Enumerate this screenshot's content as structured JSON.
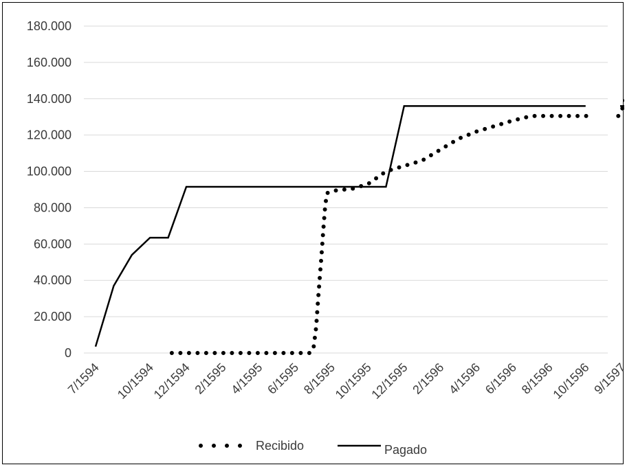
{
  "chart_data": {
    "type": "line",
    "title": "",
    "xlabel": "",
    "ylabel": "",
    "ylim": [
      0,
      180000
    ],
    "y_ticks": [
      "0",
      "20.000",
      "40.000",
      "60.000",
      "80.000",
      "100.000",
      "120.000",
      "140.000",
      "160.000",
      "180.000"
    ],
    "y_tick_values": [
      0,
      20000,
      40000,
      60000,
      80000,
      100000,
      120000,
      140000,
      160000,
      180000
    ],
    "categories": [
      "7/1594",
      "8/1594",
      "9/1594",
      "10/1594",
      "11/1594",
      "12/1594",
      "1/1595",
      "2/1595",
      "3/1595",
      "4/1595",
      "5/1595",
      "6/1595",
      "7/1595",
      "8/1595",
      "9/1595",
      "10/1595",
      "11/1595",
      "12/1595",
      "1/1596",
      "2/1596",
      "3/1596",
      "4/1596",
      "5/1596",
      "6/1596",
      "7/1596",
      "8/1596",
      "9/1596",
      "10/1596",
      "_gap",
      "9/1597"
    ],
    "x_tick_labels": [
      {
        "index": 0,
        "label": "7/1594"
      },
      {
        "index": 3,
        "label": "10/1594"
      },
      {
        "index": 5,
        "label": "12/1594"
      },
      {
        "index": 7,
        "label": "2/1595"
      },
      {
        "index": 9,
        "label": "4/1595"
      },
      {
        "index": 11,
        "label": "6/1595"
      },
      {
        "index": 13,
        "label": "8/1595"
      },
      {
        "index": 15,
        "label": "10/1595"
      },
      {
        "index": 17,
        "label": "12/1595"
      },
      {
        "index": 19,
        "label": "2/1596"
      },
      {
        "index": 21,
        "label": "4/1596"
      },
      {
        "index": 23,
        "label": "6/1596"
      },
      {
        "index": 25,
        "label": "8/1596"
      },
      {
        "index": 27,
        "label": "10/1596"
      },
      {
        "index": 29,
        "label": "9/1597"
      }
    ],
    "series": [
      {
        "name": "Recibido",
        "style": "dotted",
        "color": "#000000",
        "points": [
          [
            4.2,
            0
          ],
          [
            5,
            0
          ],
          [
            6,
            0
          ],
          [
            7,
            0
          ],
          [
            8,
            0
          ],
          [
            9,
            0
          ],
          [
            10,
            0
          ],
          [
            11,
            0
          ],
          [
            11.8,
            0
          ],
          [
            12.0,
            2000
          ],
          [
            12.15,
            14000
          ],
          [
            12.25,
            28000
          ],
          [
            12.35,
            41000
          ],
          [
            12.45,
            54000
          ],
          [
            12.55,
            68000
          ],
          [
            12.65,
            81000
          ],
          [
            12.75,
            88000
          ],
          [
            13.0,
            89000
          ],
          [
            13.5,
            90000
          ],
          [
            14,
            90000
          ],
          [
            15,
            93000
          ],
          [
            16,
            100000
          ],
          [
            17,
            103000
          ],
          [
            18,
            106000
          ],
          [
            19,
            112000
          ],
          [
            20,
            118000
          ],
          [
            21,
            122000
          ],
          [
            22,
            125000
          ],
          [
            23,
            128000
          ],
          [
            24,
            130500
          ],
          [
            25,
            130500
          ],
          [
            26,
            130500
          ],
          [
            27,
            130500
          ],
          [
            27.1,
            130500
          ],
          null,
          [
            28.8,
            130500
          ],
          [
            29.1,
            136000
          ],
          [
            29.4,
            145000
          ],
          [
            29.7,
            155000
          ],
          [
            30.0,
            163000
          ]
        ]
      },
      {
        "name": "Pagado",
        "style": "solid",
        "color": "#000000",
        "points": [
          [
            0,
            3500
          ],
          [
            1,
            37000
          ],
          [
            2,
            54000
          ],
          [
            3,
            63500
          ],
          [
            4,
            63500
          ],
          [
            5,
            91500
          ],
          [
            6,
            91500
          ],
          [
            7,
            91500
          ],
          [
            8,
            91500
          ],
          [
            9,
            91500
          ],
          [
            10,
            91500
          ],
          [
            11,
            91500
          ],
          [
            12,
            91500
          ],
          [
            13,
            91500
          ],
          [
            14,
            91500
          ],
          [
            15,
            91500
          ],
          [
            16,
            91500
          ],
          [
            17,
            136000
          ],
          [
            18,
            136000
          ],
          [
            19,
            136000
          ],
          [
            20,
            136000
          ],
          [
            21,
            136000
          ],
          [
            22,
            136000
          ],
          [
            23,
            136000
          ],
          [
            24,
            136000
          ],
          [
            25,
            136000
          ],
          [
            26,
            136000
          ],
          [
            27,
            136000
          ],
          null,
          [
            28.9,
            136000
          ],
          [
            30.0,
            136000
          ]
        ]
      }
    ],
    "legend": {
      "position": "bottom",
      "items": [
        {
          "label": "Recibido",
          "style": "dotted"
        },
        {
          "label": "Pagado",
          "style": "solid"
        }
      ]
    },
    "grid": true
  }
}
